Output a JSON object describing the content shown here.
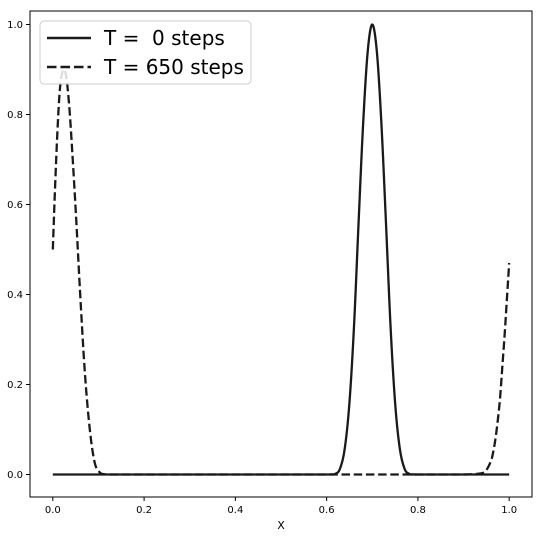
{
  "chart_data": {
    "type": "line",
    "title": "",
    "xlabel": "X",
    "ylabel": "",
    "xlim": [
      -0.05,
      1.05
    ],
    "ylim": [
      -0.05,
      1.03
    ],
    "xticks": [
      0.0,
      0.2,
      0.4,
      0.6,
      0.8,
      1.0
    ],
    "xtick_labels": [
      "0.0",
      "0.2",
      "0.4",
      "0.6",
      "0.8",
      "1.0"
    ],
    "yticks": [
      0.0,
      0.2,
      0.4,
      0.6,
      0.8,
      1.0
    ],
    "ytick_labels": [
      "0.0",
      "0.2",
      "0.4",
      "0.6",
      "0.8",
      "1.0"
    ],
    "grid": false,
    "legend_position": "top-left",
    "series_color": "#1a1a1a",
    "series": [
      {
        "name": "T =  0 steps",
        "style": "solid",
        "x": [
          0.0,
          0.05,
          0.1,
          0.2,
          0.3,
          0.4,
          0.5,
          0.6,
          0.62,
          0.63,
          0.64,
          0.65,
          0.66,
          0.67,
          0.68,
          0.69,
          0.7,
          0.71,
          0.72,
          0.73,
          0.74,
          0.75,
          0.76,
          0.77,
          0.78,
          0.8,
          0.9,
          1.0
        ],
        "y": [
          0.0,
          0.0,
          0.0,
          0.0,
          0.0,
          0.0,
          0.0,
          0.0,
          0.002,
          0.015,
          0.06,
          0.16,
          0.33,
          0.56,
          0.78,
          0.94,
          1.0,
          0.94,
          0.78,
          0.56,
          0.33,
          0.16,
          0.06,
          0.015,
          0.002,
          0.0,
          0.0,
          0.0
        ]
      },
      {
        "name": "T = 650 steps",
        "style": "dashed",
        "x": [
          0.0,
          0.005,
          0.01,
          0.015,
          0.02,
          0.025,
          0.03,
          0.035,
          0.04,
          0.05,
          0.06,
          0.07,
          0.08,
          0.09,
          0.1,
          0.12,
          0.2,
          0.4,
          0.6,
          0.8,
          0.9,
          0.94,
          0.95,
          0.96,
          0.965,
          0.97,
          0.975,
          0.98,
          0.985,
          0.99,
          0.995,
          1.0
        ],
        "y": [
          0.5,
          0.64,
          0.76,
          0.85,
          0.89,
          0.9,
          0.88,
          0.83,
          0.76,
          0.59,
          0.4,
          0.23,
          0.11,
          0.035,
          0.008,
          0.0,
          0.0,
          0.0,
          0.0,
          0.0,
          0.0,
          0.003,
          0.01,
          0.03,
          0.05,
          0.08,
          0.12,
          0.17,
          0.24,
          0.31,
          0.39,
          0.47
        ]
      }
    ]
  }
}
